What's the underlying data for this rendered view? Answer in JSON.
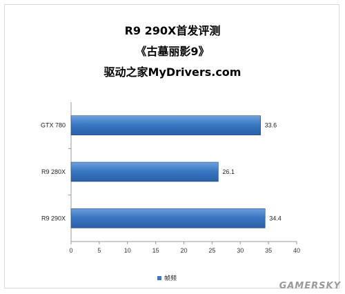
{
  "header": {
    "title": "R9 290X首发评测",
    "subtitle": "《古墓丽影9》",
    "source": "驱动之家MyDrivers.com"
  },
  "legend": {
    "label": "帧频"
  },
  "watermark": "GAMERSKY",
  "colors": {
    "bar": "#3a78c4",
    "bar_edge": "#1f4e8a",
    "axis": "#999999"
  },
  "chart_data": {
    "type": "bar",
    "orientation": "horizontal",
    "title": "R9 290X首发评测",
    "categories": [
      "GTX 780",
      "R9 280X",
      "R9 290X"
    ],
    "series": [
      {
        "name": "帧频",
        "values": [
          33.6,
          26.1,
          34.4
        ]
      }
    ],
    "value_labels": [
      "33.6",
      "26.1",
      "34.4"
    ],
    "xlim": [
      0,
      40
    ],
    "xticks": [
      0,
      5,
      10,
      15,
      20,
      25,
      30,
      35,
      40
    ],
    "xlabel": "",
    "ylabel": "",
    "grid": false,
    "legend_position": "bottom"
  }
}
